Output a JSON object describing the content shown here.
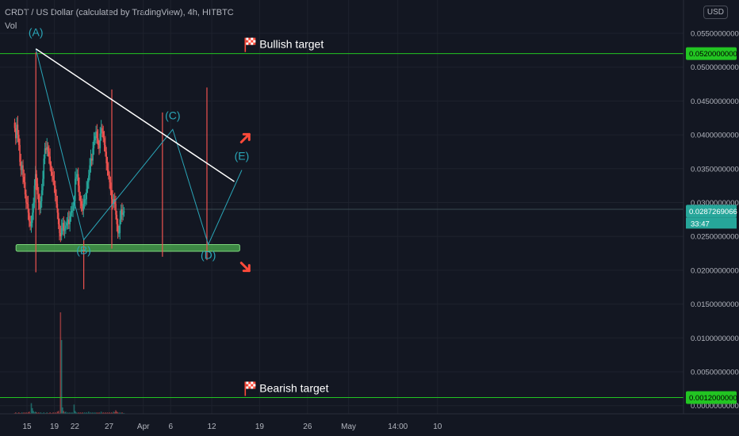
{
  "header": {
    "title": "CRDT / US Dollar (calculated by TradingView), 4h, HITBTC",
    "sub_label": "Vol",
    "currency_button": "USD"
  },
  "colors": {
    "background": "#131722",
    "bull_candle": "#26a69a",
    "bear_candle": "#ef5350",
    "target_line": "#22c522",
    "support_zone": "#4caf50",
    "trendline": "#ffffff",
    "wave_line": "#2aa6b8",
    "arrow": "#ff4a3a"
  },
  "chart_data": {
    "type": "candlestick",
    "symbol": "CRDT / US Dollar (calculated by TradingView)",
    "interval": "4h",
    "exchange": "HITBTC",
    "y_axis": {
      "ticks": [
        "0.0550000000",
        "0.0500000000",
        "0.0450000000",
        "0.0400000000",
        "0.0350000000",
        "0.0300000000",
        "0.0250000000",
        "0.0200000000",
        "0.0150000000",
        "0.0100000000",
        "0.0050000000",
        "0.0000000000"
      ],
      "tick_values": [
        0.055,
        0.05,
        0.045,
        0.04,
        0.035,
        0.03,
        0.025,
        0.02,
        0.015,
        0.01,
        0.005,
        0.0
      ],
      "range": [
        -0.0005,
        0.0575
      ]
    },
    "x_axis": {
      "labels": [
        "15",
        "19",
        "22",
        "27",
        "Apr",
        "6",
        "12",
        "19",
        "26",
        "May",
        "14:00",
        "10"
      ]
    },
    "last_price": {
      "value": 0.0287269066,
      "label": "0.0287269066",
      "countdown": "33:47"
    },
    "price_line_value": 0.029,
    "targets": [
      {
        "name": "Bullish target",
        "value": 0.052,
        "label": "0.0520000000"
      },
      {
        "name": "Bearish target",
        "value": 0.0012,
        "label": "0.0012000000"
      }
    ],
    "support_zone": {
      "low": 0.0228,
      "high": 0.0238
    },
    "trendline": {
      "start": [
        1.3,
        0.0527
      ],
      "end": [
        30.3,
        0.0331
      ]
    },
    "waves": [
      {
        "label": "(A)",
        "x": 1.3,
        "y": 0.0527
      },
      {
        "label": "(B)",
        "x": 8.3,
        "y": 0.0245
      },
      {
        "label": "(C)",
        "x": 21.3,
        "y": 0.0408
      },
      {
        "label": "(D)",
        "x": 26.5,
        "y": 0.0238
      },
      {
        "label": "(E)",
        "x": 31.4,
        "y": 0.0348
      }
    ],
    "series": [
      {
        "name": "price",
        "values": [
          0.041,
          0.0395,
          0.0415,
          0.04,
          0.0385,
          0.036,
          0.0348,
          0.0355,
          0.0338,
          0.033,
          0.0312,
          0.03,
          0.0298,
          0.0285,
          0.0272,
          0.0265,
          0.027,
          0.0285,
          0.03,
          0.0325,
          0.0342,
          0.0328,
          0.0312,
          0.03,
          0.029,
          0.0302,
          0.0318,
          0.0335,
          0.0365,
          0.038,
          0.0378,
          0.0382,
          0.0375,
          0.0368,
          0.0355,
          0.0345,
          0.034,
          0.0333,
          0.0325,
          0.031,
          0.0298,
          0.0285,
          0.0268,
          0.0255,
          0.025,
          0.0262,
          0.027,
          0.0258,
          0.0262,
          0.0266,
          0.027,
          0.0275,
          0.0268,
          0.028,
          0.0285,
          0.0288,
          0.0295,
          0.0302,
          0.0335,
          0.0338,
          0.0342,
          0.0325,
          0.031,
          0.0302,
          0.0295,
          0.0288,
          0.0298,
          0.0305,
          0.0305,
          0.032,
          0.033,
          0.034,
          0.0355,
          0.0365,
          0.0362,
          0.038,
          0.0392,
          0.0398,
          0.0405,
          0.0395,
          0.0385,
          0.038,
          0.0402,
          0.041,
          0.0405,
          0.0395,
          0.0385,
          0.0375,
          0.0358,
          0.0348,
          0.034,
          0.033,
          0.0318,
          0.0305,
          0.0298,
          0.0305,
          0.0298,
          0.0282,
          0.0268,
          0.0255,
          0.0255,
          0.0275,
          0.029,
          0.0282,
          0.0285,
          0.0287269066
        ]
      },
      {
        "name": "Vol",
        "values": [
          0.0001,
          0.0002,
          0.0001,
          0.0001,
          0.0002,
          0.0001,
          0.0001,
          0.0002,
          0.0001,
          0.0002,
          0.0001,
          0.0002,
          0.0001,
          0.0002,
          0.0003,
          0.0001,
          0.0015,
          0.0008,
          0.0004,
          0.0002,
          0.0003,
          0.0002,
          0.0001,
          0.0002,
          0.0001,
          0.0002,
          0.0001,
          0.0001,
          0.0002,
          0.0001,
          0.0001,
          0.0002,
          0.0001,
          0.0001,
          0.0002,
          0.0001,
          0.0001,
          0.0002,
          0.0001,
          0.0002,
          0.0001,
          0.0003,
          0.0004,
          0.0001,
          0.0143,
          0.0104,
          0.0009,
          0.0004,
          0.0002,
          0.0003,
          0.0001,
          0.0002,
          0.0001,
          0.0002,
          0.0001,
          0.0002,
          0.0001,
          0.0013,
          0.0004,
          0.0002,
          0.0001,
          0.0002,
          0.0001,
          0.0002,
          0.0001,
          0.0002,
          0.0001,
          0.0002,
          0.0001,
          0.0002,
          0.0001,
          0.0003,
          0.0001,
          0.0002,
          0.0001,
          0.0002,
          0.0001,
          0.0002,
          0.0001,
          0.0002,
          0.0001,
          0.0002,
          0.0001,
          0.0003,
          0.0001,
          0.0002,
          0.0001,
          0.0002,
          0.0001,
          0.0002,
          0.0001,
          0.0002,
          0.0001,
          0.0002,
          0.0001,
          0.0003,
          0.0002,
          0.0005,
          0.0003,
          0.0002,
          0.0001,
          0.0002,
          0.0001,
          0.0002,
          0.0001,
          0.0001
        ]
      }
    ]
  }
}
